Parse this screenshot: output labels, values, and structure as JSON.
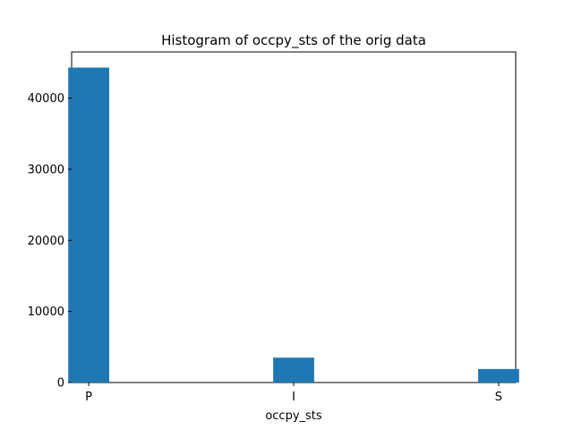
{
  "chart_data": {
    "type": "bar",
    "title": "Histogram of occpy_sts of the orig data",
    "xlabel": "occpy_sts",
    "ylabel": "",
    "categories": [
      "P",
      "I",
      "S"
    ],
    "values": [
      44300,
      3500,
      1900
    ],
    "ylim": [
      0,
      46500
    ],
    "yticks": [
      0,
      10000,
      20000,
      30000,
      40000
    ],
    "grid": false,
    "legend": "none",
    "bar_color": "#1f77b4"
  }
}
